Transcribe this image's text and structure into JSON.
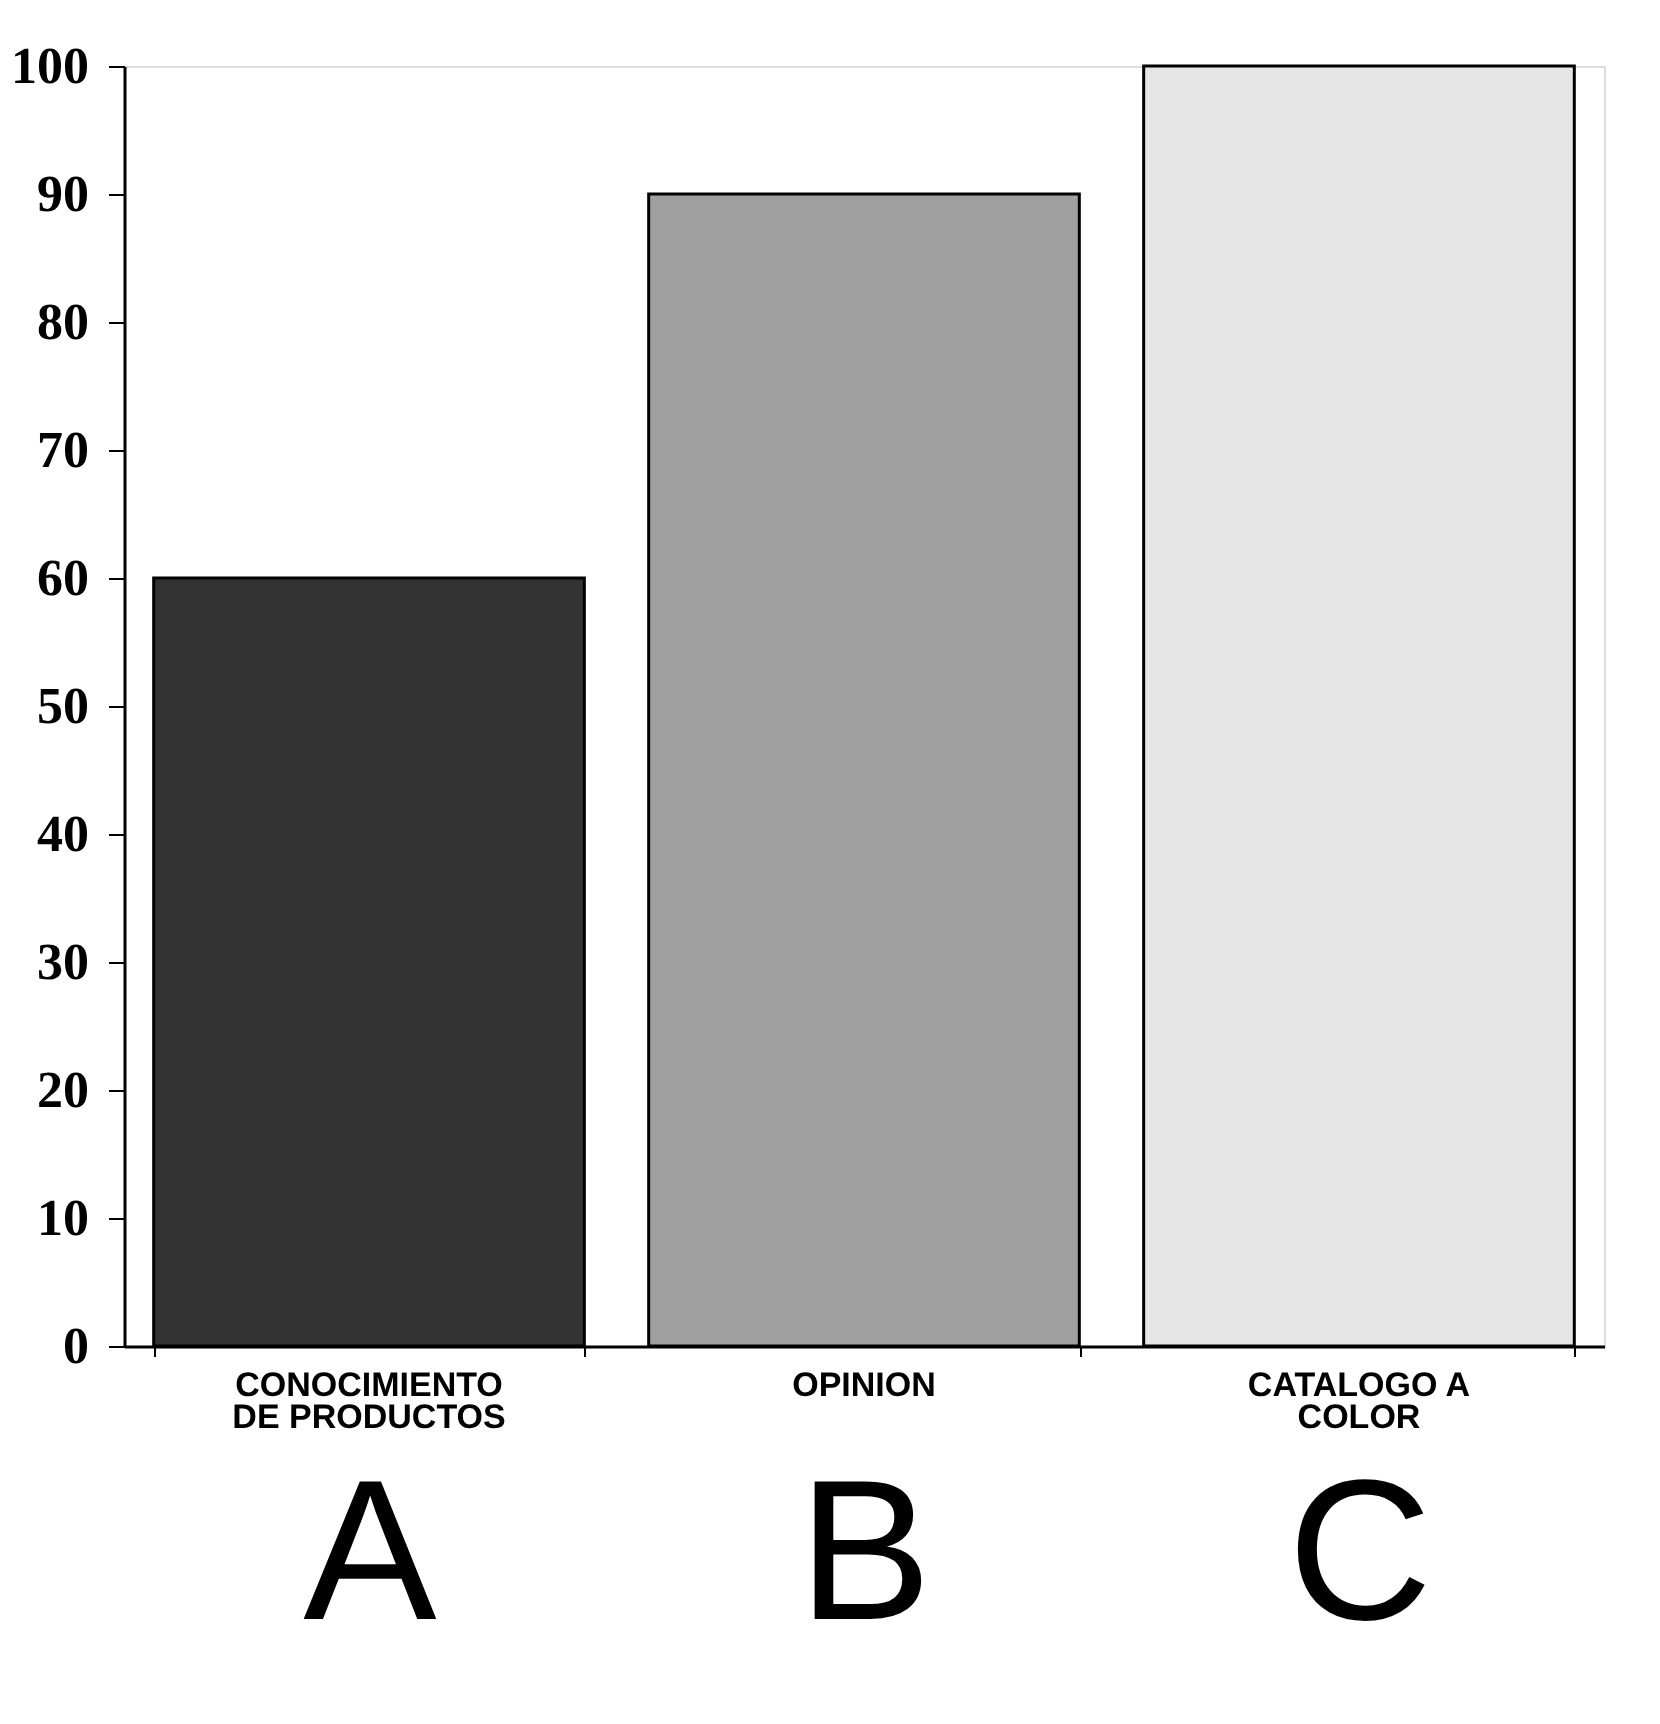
{
  "chart_data": {
    "type": "bar",
    "categories": [
      "A",
      "B",
      "C"
    ],
    "values": [
      60,
      90,
      100
    ],
    "colors": [
      "#333333",
      "#a0a0a0",
      "#e6e6e6"
    ],
    "ylim": [
      0,
      100
    ],
    "yticks": [
      0,
      10,
      20,
      30,
      40,
      50,
      60,
      70,
      80,
      90,
      100
    ],
    "grid": false,
    "annotations": [
      "CONOCIMIENTO\nDE PRODUCTOS",
      "OPINION",
      "CATALOGO A\nCOLOR"
    ]
  }
}
